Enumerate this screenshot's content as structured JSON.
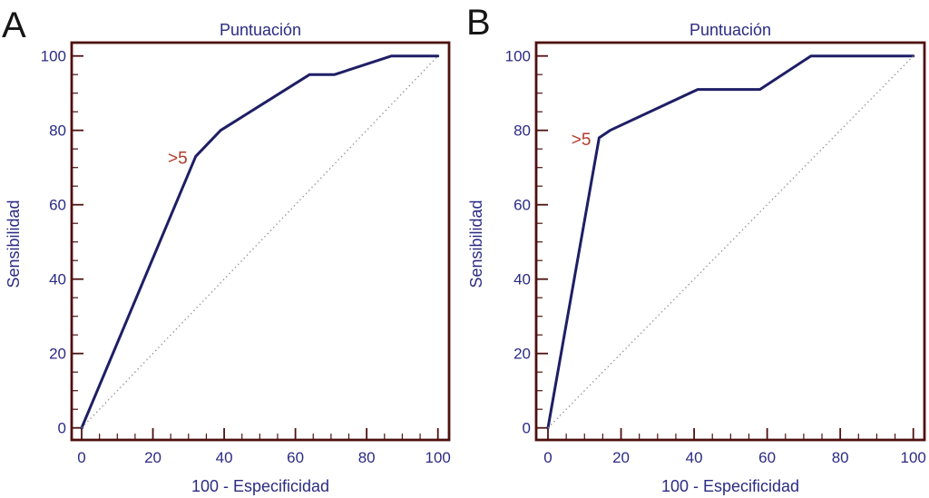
{
  "figure": {
    "background_color": "#ffffff",
    "frame_color": "#4f1010",
    "text_color": "#2b2b85",
    "curve_color": "#1e1e66",
    "diagonal_color": "#8f8f8f",
    "annotation_color": "#b23a2a",
    "panel_letter_color": "#161616"
  },
  "chart_data": [
    {
      "type": "line",
      "panel_label": "A",
      "title": "Puntuación",
      "xlabel": "100 - Especificidad",
      "ylabel": "Sensibilidad",
      "xlim": [
        0,
        100
      ],
      "ylim": [
        0,
        100
      ],
      "xticks": [
        0,
        20,
        40,
        60,
        80,
        100
      ],
      "yticks": [
        0,
        20,
        40,
        60,
        80,
        100
      ],
      "minor_tick_step": 5,
      "grid": false,
      "legend": "none",
      "series": [
        {
          "name": "ROC curve (Puntuación)",
          "style": "solid",
          "points": [
            [
              0,
              0
            ],
            [
              32,
              73
            ],
            [
              39,
              80
            ],
            [
              64,
              95
            ],
            [
              71,
              95
            ],
            [
              87,
              100
            ],
            [
              100,
              100
            ]
          ]
        },
        {
          "name": "Reference diagonal (chance line)",
          "style": "dotted",
          "points": [
            [
              0,
              0
            ],
            [
              100,
              100
            ]
          ]
        }
      ],
      "annotation": {
        "text": ">5",
        "x": 32,
        "y": 73
      }
    },
    {
      "type": "line",
      "panel_label": "B",
      "title": "Puntuación",
      "xlabel": "100 - Especificidad",
      "ylabel": "Sensibilidad",
      "xlim": [
        0,
        100
      ],
      "ylim": [
        0,
        100
      ],
      "xticks": [
        0,
        20,
        40,
        60,
        80,
        100
      ],
      "yticks": [
        0,
        20,
        40,
        60,
        80,
        100
      ],
      "minor_tick_step": 5,
      "grid": false,
      "legend": "none",
      "series": [
        {
          "name": "ROC curve (Puntuación)",
          "style": "solid",
          "points": [
            [
              0,
              0
            ],
            [
              14,
              78
            ],
            [
              17,
              80
            ],
            [
              41,
              91
            ],
            [
              58,
              91
            ],
            [
              72,
              100
            ],
            [
              100,
              100
            ]
          ]
        },
        {
          "name": "Reference diagonal (chance line)",
          "style": "dotted",
          "points": [
            [
              0,
              0
            ],
            [
              100,
              100
            ]
          ]
        }
      ],
      "annotation": {
        "text": ">5",
        "x": 14,
        "y": 78
      }
    }
  ]
}
